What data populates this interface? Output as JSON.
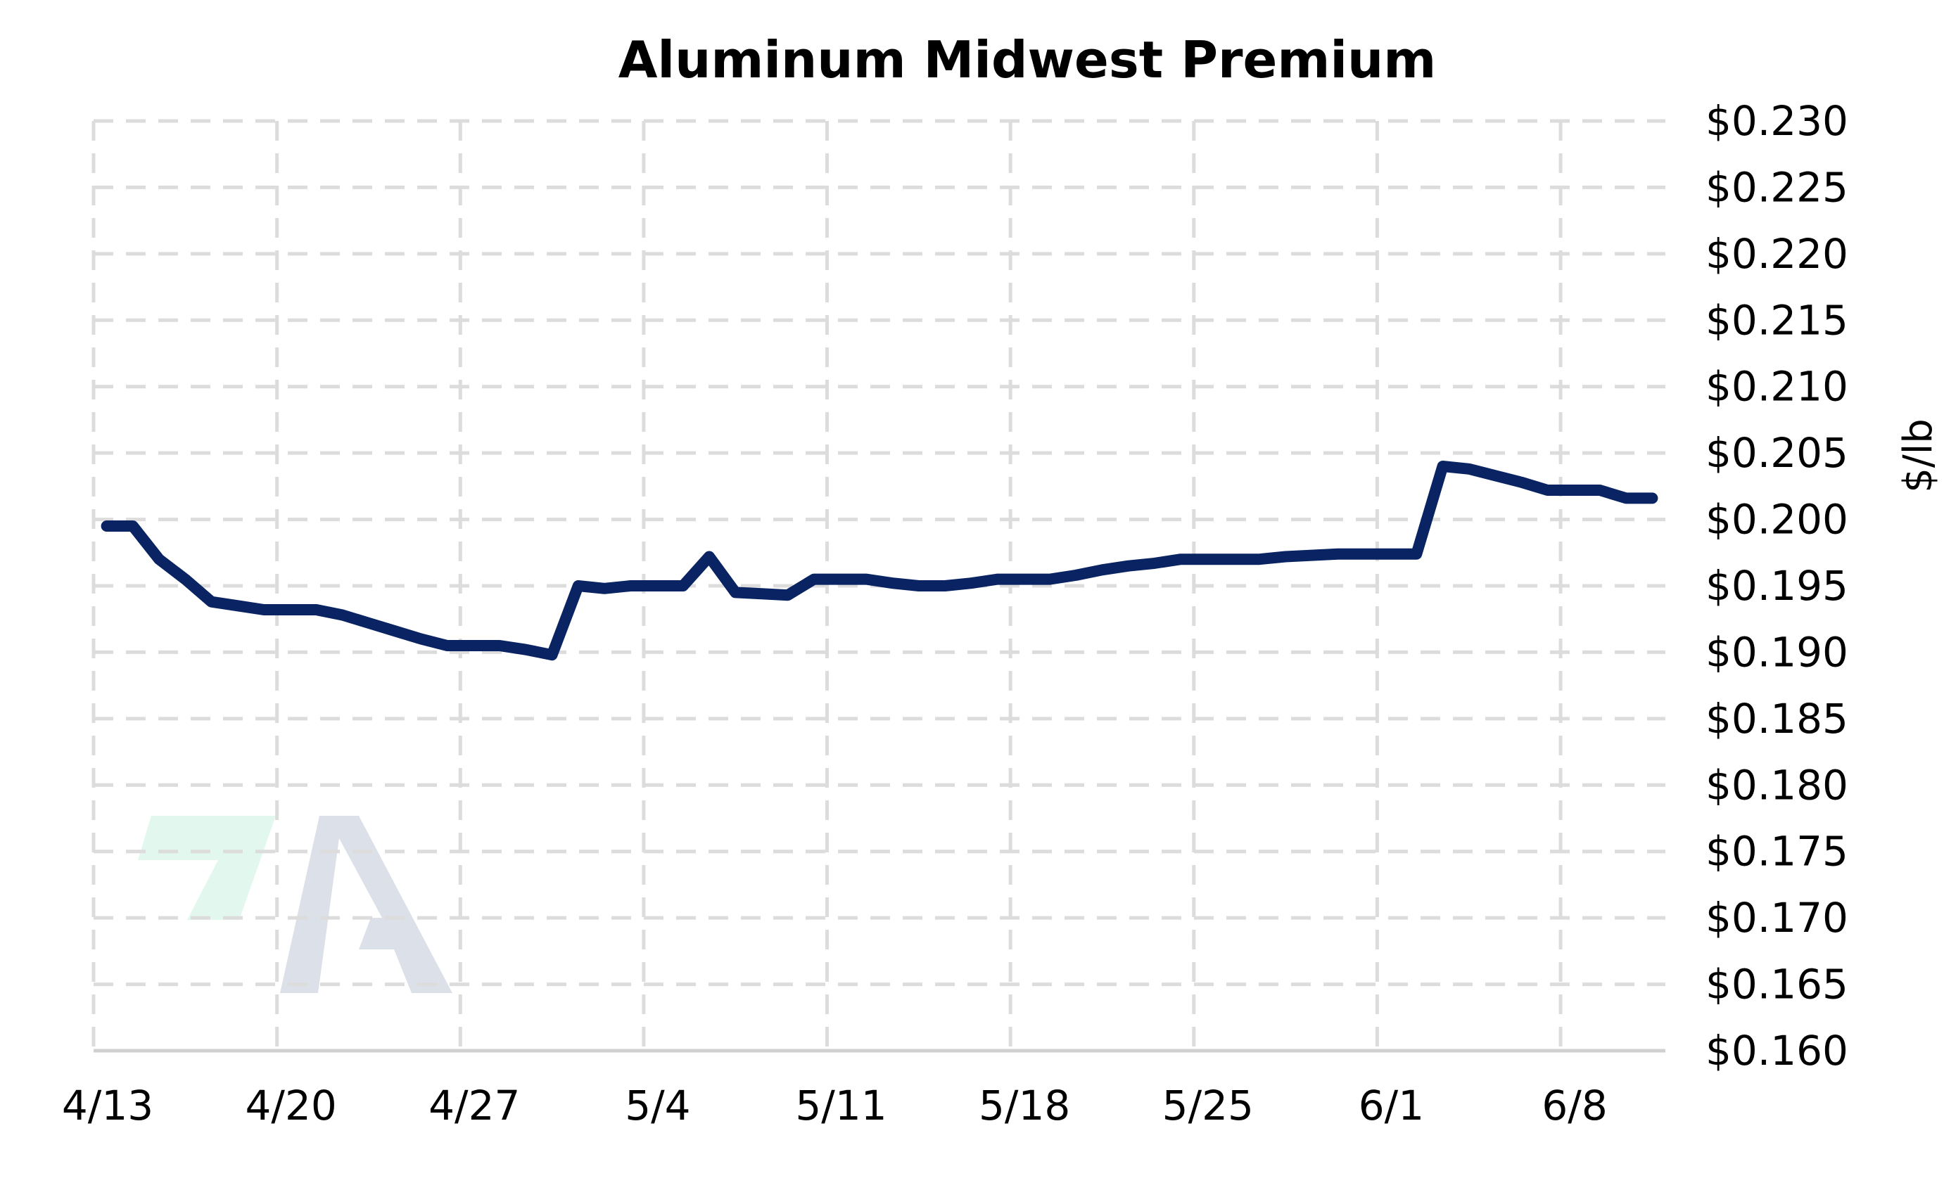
{
  "chart_data": {
    "type": "line",
    "title": "Aluminum Midwest Premium",
    "ylabel": "$/lb",
    "xlabel": "",
    "x_ticks": [
      "4/13",
      "4/20",
      "4/27",
      "5/4",
      "5/11",
      "5/18",
      "5/25",
      "6/1",
      "6/8"
    ],
    "x_tick_days": [
      0,
      7,
      14,
      21,
      28,
      35,
      42,
      49,
      56
    ],
    "xlim": [
      0,
      60
    ],
    "ylim": [
      0.16,
      0.23
    ],
    "y_ticks": [
      "$0.230",
      "$0.225",
      "$0.220",
      "$0.215",
      "$0.210",
      "$0.205",
      "$0.200",
      "$0.195",
      "$0.190",
      "$0.185",
      "$0.180",
      "$0.175",
      "$0.170",
      "$0.165",
      "$0.160"
    ],
    "y_tick_values": [
      0.23,
      0.225,
      0.22,
      0.215,
      0.21,
      0.205,
      0.2,
      0.195,
      0.19,
      0.185,
      0.18,
      0.175,
      0.17,
      0.165,
      0.16
    ],
    "grid": true,
    "legend": "none",
    "y_axis_position": "right",
    "series": [
      {
        "color": "#0a2463",
        "x": [
          0.5,
          1.5,
          2.5,
          3.5,
          4.5,
          5.5,
          6.5,
          7.5,
          8.5,
          9.5,
          10.5,
          11.5,
          12.5,
          13.5,
          14.5,
          15.5,
          16.5,
          17.5,
          18.5,
          19.5,
          20.5,
          21.5,
          22.5,
          23.5,
          24.5,
          25.5,
          26.5,
          27.5,
          28.5,
          29.5,
          30.5,
          31.5,
          32.5,
          33.5,
          34.5,
          35.5,
          36.5,
          37.5,
          38.5,
          39.5,
          40.5,
          41.5,
          42.5,
          43.5,
          44.5,
          45.5,
          46.5,
          47.5,
          48.5,
          49.5,
          50.5,
          51.5,
          52.5,
          53.5,
          54.5,
          55.5,
          56.5,
          57.5,
          58.5,
          59.5
        ],
        "y": [
          0.1995,
          0.1995,
          0.197,
          0.1955,
          0.1938,
          0.1935,
          0.1932,
          0.1932,
          0.1932,
          0.1928,
          0.1922,
          0.1916,
          0.191,
          0.1905,
          0.1905,
          0.1905,
          0.1902,
          0.1898,
          0.195,
          0.1948,
          0.195,
          0.195,
          0.195,
          0.1972,
          0.1945,
          0.1944,
          0.1943,
          0.1955,
          0.1955,
          0.1955,
          0.1952,
          0.195,
          0.195,
          0.1952,
          0.1955,
          0.1955,
          0.1955,
          0.1958,
          0.1962,
          0.1965,
          0.1967,
          0.197,
          0.197,
          0.197,
          0.197,
          0.1972,
          0.1973,
          0.1974,
          0.1974,
          0.1974,
          0.1974,
          0.204,
          0.2038,
          0.2033,
          0.2028,
          0.2022,
          0.2022,
          0.2022,
          0.2016,
          0.2016
        ]
      }
    ]
  }
}
